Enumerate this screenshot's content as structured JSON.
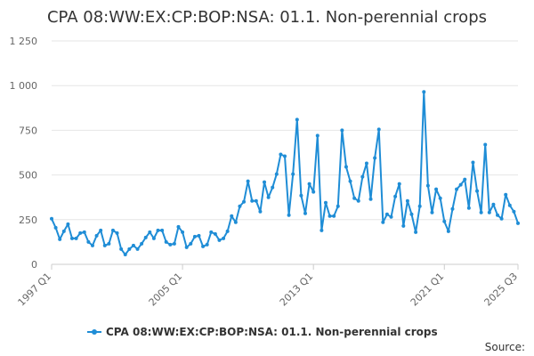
{
  "chart_data": {
    "type": "line",
    "title": "CPA 08:WW:EX:CP:BOP:NSA: 01.1. Non-perennial crops",
    "xlabel": "",
    "ylabel": "",
    "x_tick_labels": [
      "1997 Q1",
      "2005 Q1",
      "2013 Q1",
      "2021 Q1",
      "2025 Q3"
    ],
    "y_tick_labels": [
      "0",
      "250",
      "500",
      "750",
      "1 000",
      "1 250"
    ],
    "ylim": [
      0,
      1250
    ],
    "grid": true,
    "legend_position": "bottom",
    "source_label": "Source:",
    "series": [
      {
        "name": "CPA 08:WW:EX:CP:BOP:NSA: 01.1. Non-perennial crops",
        "color": "#1f8dd6",
        "values": [
          255,
          205,
          140,
          185,
          225,
          145,
          145,
          175,
          180,
          125,
          105,
          160,
          190,
          105,
          115,
          190,
          175,
          85,
          55,
          85,
          105,
          85,
          115,
          150,
          180,
          145,
          190,
          190,
          125,
          110,
          115,
          210,
          180,
          95,
          115,
          155,
          160,
          100,
          110,
          180,
          170,
          135,
          145,
          185,
          270,
          235,
          325,
          350,
          465,
          355,
          355,
          295,
          460,
          375,
          430,
          505,
          615,
          605,
          275,
          505,
          810,
          385,
          285,
          450,
          405,
          720,
          190,
          345,
          270,
          270,
          325,
          750,
          545,
          465,
          370,
          355,
          490,
          565,
          365,
          595,
          755,
          235,
          280,
          265,
          380,
          450,
          215,
          355,
          280,
          180,
          325,
          965,
          440,
          290,
          420,
          370,
          240,
          185,
          310,
          420,
          445,
          475,
          315,
          570,
          410,
          290,
          670,
          290,
          335,
          275,
          255,
          390,
          330,
          295,
          230
        ]
      }
    ]
  }
}
